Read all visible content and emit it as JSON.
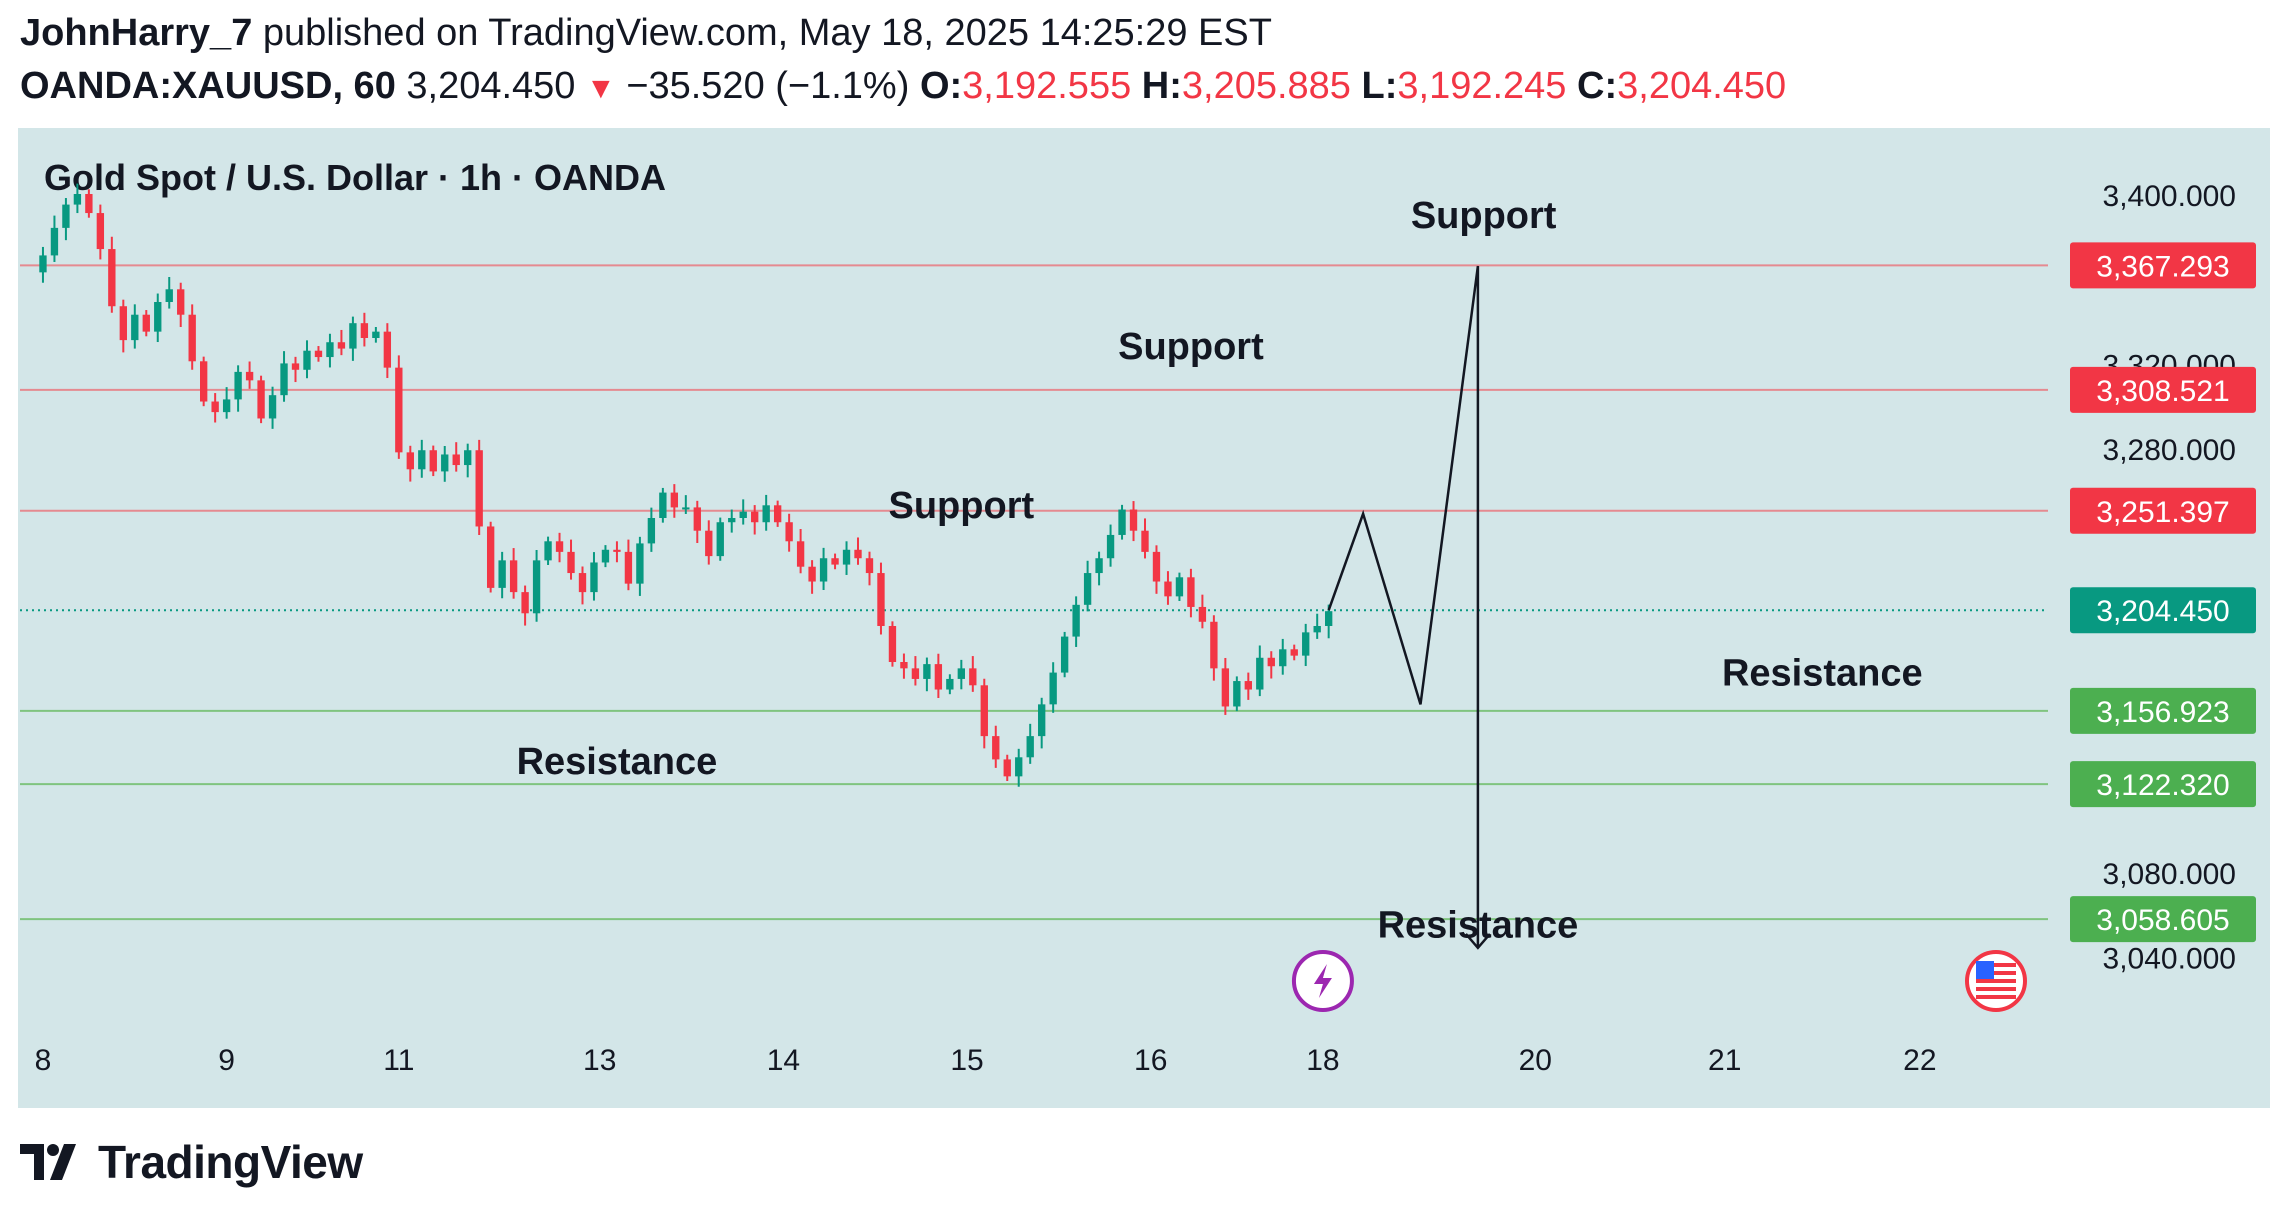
{
  "header": {
    "author": "JohnHarry_7",
    "published": "published on TradingView.com, May 18, 2025 14:25:29 EST",
    "symbol": "OANDA:XAUUSD, 60",
    "last": "3,204.450",
    "change": "−35.520 (−1.1%)",
    "o_label": "O:",
    "o_value": "3,192.555",
    "h_label": "H:",
    "h_value": "3,205.885",
    "l_label": "L:",
    "l_value": "3,192.245",
    "c_label": "C:",
    "c_value": "3,204.450"
  },
  "brand": {
    "name": "TradingView"
  },
  "chart_data": {
    "type": "candlestick",
    "title": "Gold Spot / U.S. Dollar · 1h · OANDA",
    "ylim": [
      3010,
      3418
    ],
    "y_ticks": [
      3040,
      3080,
      3280,
      3320,
      3400
    ],
    "y_tick_labels": [
      "3,040.000",
      "3,080.000",
      "3,280.000",
      "3,320.000",
      "3,400.000"
    ],
    "x_tick_labels": [
      "8",
      "9",
      "11",
      "13",
      "14",
      "15",
      "16",
      "18",
      "20",
      "21",
      "22"
    ],
    "colors": {
      "up": "#089981",
      "down": "#f23645",
      "resistance_line": "#7fc47f",
      "support_line": "#e58a90",
      "current": "#089981",
      "bg": "#d3e6e8"
    },
    "price_lines": [
      {
        "value": 3367.293,
        "label": "3,367.293",
        "kind": "red"
      },
      {
        "value": 3308.521,
        "label": "3,308.521",
        "kind": "red"
      },
      {
        "value": 3251.397,
        "label": "3,251.397",
        "kind": "red"
      },
      {
        "value": 3204.45,
        "label": "3,204.450",
        "kind": "current"
      },
      {
        "value": 3156.923,
        "label": "3,156.923",
        "kind": "green"
      },
      {
        "value": 3122.32,
        "label": "3,122.320",
        "kind": "green"
      },
      {
        "value": 3058.605,
        "label": "3,058.605",
        "kind": "green"
      }
    ],
    "close_path": [
      [
        0,
        3364
      ],
      [
        1,
        3372
      ],
      [
        2,
        3385
      ],
      [
        3,
        3396
      ],
      [
        4,
        3401
      ],
      [
        5,
        3392
      ],
      [
        6,
        3375
      ],
      [
        7,
        3348
      ],
      [
        8,
        3332
      ],
      [
        9,
        3344
      ],
      [
        10,
        3336
      ],
      [
        11,
        3350
      ],
      [
        12,
        3356
      ],
      [
        13,
        3344
      ],
      [
        14,
        3322
      ],
      [
        15,
        3303
      ],
      [
        16,
        3298
      ],
      [
        17,
        3304
      ],
      [
        18,
        3317
      ],
      [
        19,
        3313
      ],
      [
        20,
        3295
      ],
      [
        21,
        3306
      ],
      [
        22,
        3321
      ],
      [
        23,
        3318
      ],
      [
        24,
        3327
      ],
      [
        25,
        3324
      ],
      [
        26,
        3331
      ],
      [
        27,
        3328
      ],
      [
        28,
        3340
      ],
      [
        29,
        3333
      ],
      [
        30,
        3336
      ],
      [
        31,
        3319
      ],
      [
        32,
        3279
      ],
      [
        33,
        3271
      ],
      [
        34,
        3280
      ],
      [
        35,
        3270
      ],
      [
        36,
        3278
      ],
      [
        37,
        3273
      ],
      [
        38,
        3280
      ],
      [
        39,
        3244
      ],
      [
        40,
        3215
      ],
      [
        41,
        3228
      ],
      [
        42,
        3213
      ],
      [
        43,
        3203
      ],
      [
        44,
        3228
      ],
      [
        45,
        3237
      ],
      [
        46,
        3232
      ],
      [
        47,
        3222
      ],
      [
        48,
        3213
      ],
      [
        49,
        3227
      ],
      [
        50,
        3233
      ],
      [
        51,
        3232
      ],
      [
        52,
        3217
      ],
      [
        53,
        3236
      ],
      [
        54,
        3248
      ],
      [
        55,
        3260
      ],
      [
        56,
        3253
      ],
      [
        57,
        3253
      ],
      [
        58,
        3242
      ],
      [
        59,
        3230
      ],
      [
        60,
        3246
      ],
      [
        61,
        3248
      ],
      [
        62,
        3251
      ],
      [
        63,
        3246
      ],
      [
        64,
        3254
      ],
      [
        65,
        3246
      ],
      [
        66,
        3237
      ],
      [
        67,
        3225
      ],
      [
        68,
        3218
      ],
      [
        69,
        3229
      ],
      [
        70,
        3226
      ],
      [
        71,
        3233
      ],
      [
        72,
        3229
      ],
      [
        73,
        3222
      ],
      [
        74,
        3197
      ],
      [
        75,
        3180
      ],
      [
        76,
        3177
      ],
      [
        77,
        3172
      ],
      [
        78,
        3179
      ],
      [
        79,
        3167
      ],
      [
        80,
        3172
      ],
      [
        81,
        3177
      ],
      [
        82,
        3169
      ],
      [
        83,
        3145
      ],
      [
        84,
        3134
      ],
      [
        85,
        3126
      ],
      [
        86,
        3135
      ],
      [
        87,
        3145
      ],
      [
        88,
        3160
      ],
      [
        89,
        3175
      ],
      [
        90,
        3192
      ],
      [
        91,
        3207
      ],
      [
        92,
        3222
      ],
      [
        93,
        3229
      ],
      [
        94,
        3240
      ],
      [
        95,
        3252
      ],
      [
        96,
        3242
      ],
      [
        97,
        3232
      ],
      [
        98,
        3218
      ],
      [
        99,
        3211
      ],
      [
        100,
        3220
      ],
      [
        101,
        3206
      ],
      [
        102,
        3199
      ],
      [
        103,
        3177
      ],
      [
        104,
        3159
      ],
      [
        105,
        3171
      ],
      [
        106,
        3167
      ],
      [
        107,
        3182
      ],
      [
        108,
        3178
      ],
      [
        109,
        3186
      ],
      [
        110,
        3183
      ],
      [
        111,
        3194
      ],
      [
        112,
        3197
      ],
      [
        113,
        3204
      ]
    ],
    "projection_path": [
      [
        113,
        3204.45
      ],
      [
        116,
        3250
      ],
      [
        121,
        3160
      ],
      [
        126,
        3367
      ],
      [
        126,
        3045
      ]
    ],
    "annotations": [
      {
        "text": "Support",
        "x": 126.5,
        "y": 3385
      },
      {
        "text": "Support",
        "x": 101.0,
        "y": 3323
      },
      {
        "text": "Support",
        "x": 81.0,
        "y": 3248
      },
      {
        "text": "Resistance",
        "x": 156.0,
        "y": 3169
      },
      {
        "text": "Resistance",
        "x": 51.0,
        "y": 3127
      },
      {
        "text": "Resistance",
        "x": 126.0,
        "y": 3050
      }
    ],
    "x_ticks": [
      {
        "label": "8",
        "i": 1
      },
      {
        "label": "9",
        "i": 17
      },
      {
        "label": "11",
        "i": 32
      },
      {
        "label": "13",
        "i": 49.5
      },
      {
        "label": "14",
        "i": 65.5
      },
      {
        "label": "15",
        "i": 81.5
      },
      {
        "label": "16",
        "i": 97.5
      },
      {
        "label": "18",
        "i": 112.5
      },
      {
        "label": "20",
        "i": 131
      },
      {
        "label": "21",
        "i": 147.5
      },
      {
        "label": "22",
        "i": 164.5
      }
    ],
    "x_range": [
      -1,
      195
    ]
  }
}
